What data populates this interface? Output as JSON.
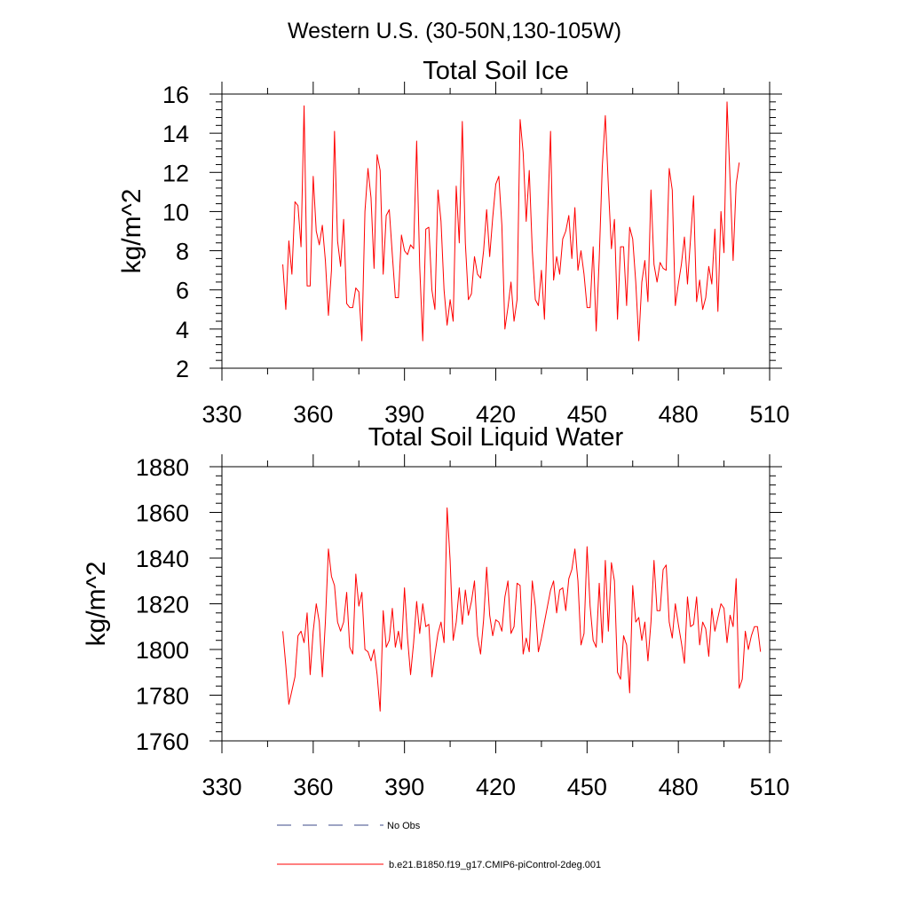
{
  "main_title": "Western U.S. (30-50N,130-105W)",
  "legend": [
    {
      "label": "No Obs",
      "color": "#3b4a8a",
      "dash": "dashed"
    },
    {
      "label": "b.e21.B1850.f19_g17.CMIP6-piControl-2deg.001",
      "color": "#ff0000",
      "dash": "solid"
    }
  ],
  "chart_data": [
    {
      "type": "line",
      "title": "Total Soil Ice",
      "xlabel": "",
      "ylabel": "kg/m^2",
      "xlim": [
        330,
        510
      ],
      "ylim": [
        2,
        16
      ],
      "xticks": [
        330,
        360,
        390,
        420,
        450,
        480,
        510
      ],
      "yticks": [
        2,
        4,
        6,
        8,
        10,
        12,
        14,
        16
      ],
      "series": [
        {
          "name": "b.e21.B1850.f19_g17.CMIP6-piControl-2deg.001",
          "color": "#ff0000",
          "x_start": 350,
          "x_step": 1,
          "values": [
            7.3,
            5.0,
            8.5,
            6.8,
            10.5,
            10.3,
            8.2,
            15.4,
            6.2,
            6.2,
            11.8,
            9.0,
            8.3,
            9.3,
            7.5,
            4.7,
            7.0,
            14.1,
            8.5,
            7.2,
            9.6,
            5.3,
            5.1,
            5.1,
            6.1,
            5.9,
            3.4,
            10.0,
            12.2,
            10.7,
            7.1,
            12.9,
            12.1,
            6.8,
            9.8,
            10.1,
            7.8,
            5.6,
            5.6,
            8.8,
            8.0,
            7.8,
            8.3,
            8.1,
            13.6,
            7.2,
            3.4,
            9.1,
            9.2,
            6.0,
            5.0,
            11.1,
            9.5,
            6.0,
            4.2,
            5.5,
            4.4,
            11.3,
            8.4,
            14.6,
            8.4,
            5.5,
            5.8,
            7.7,
            6.8,
            6.6,
            8.0,
            10.1,
            7.7,
            9.7,
            11.4,
            11.8,
            9.3,
            4.0,
            5.1,
            6.4,
            4.4,
            5.5,
            14.7,
            13.0,
            9.5,
            12.1,
            8.0,
            5.5,
            5.2,
            7.0,
            4.5,
            9.5,
            14.1,
            6.5,
            7.7,
            6.8,
            8.6,
            9.0,
            9.8,
            7.6,
            10.2,
            7.0,
            8.0,
            6.8,
            5.1,
            5.1,
            8.2,
            3.9,
            7.6,
            12.3,
            14.9,
            11.3,
            8.1,
            9.6,
            4.5,
            8.2,
            8.2,
            5.2,
            9.2,
            8.6,
            6.4,
            3.4,
            6.4,
            7.5,
            5.4,
            11.1,
            7.3,
            6.4,
            7.4,
            7.1,
            7.0,
            12.2,
            11.1,
            5.2,
            6.3,
            7.3,
            8.7,
            6.3,
            8.6,
            10.8,
            5.4,
            6.5,
            5.0,
            5.6,
            7.2,
            6.3,
            9.1,
            4.9,
            10.0,
            7.9,
            15.6,
            11.6,
            7.5,
            11.4,
            12.5
          ]
        }
      ]
    },
    {
      "type": "line",
      "title": "Total Soil Liquid Water",
      "xlabel": "",
      "ylabel": "kg/m^2",
      "xlim": [
        330,
        510
      ],
      "ylim": [
        1760,
        1880
      ],
      "xticks": [
        330,
        360,
        390,
        420,
        450,
        480,
        510
      ],
      "yticks": [
        1760,
        1780,
        1800,
        1820,
        1840,
        1860,
        1880
      ],
      "series": [
        {
          "name": "b.e21.B1850.f19_g17.CMIP6-piControl-2deg.001",
          "color": "#ff0000",
          "x_start": 350,
          "x_step": 1,
          "values": [
            1808,
            1793,
            1776,
            1782,
            1788,
            1806,
            1808,
            1803,
            1816,
            1789,
            1808,
            1820,
            1812,
            1788,
            1812,
            1844,
            1832,
            1828,
            1812,
            1808,
            1812,
            1825,
            1801,
            1798,
            1833,
            1819,
            1825,
            1800,
            1799,
            1795,
            1800,
            1789,
            1773,
            1817,
            1801,
            1804,
            1818,
            1801,
            1808,
            1800,
            1827,
            1805,
            1789,
            1803,
            1821,
            1807,
            1820,
            1810,
            1811,
            1788,
            1798,
            1807,
            1812,
            1803,
            1862,
            1839,
            1804,
            1812,
            1827,
            1811,
            1826,
            1815,
            1821,
            1830,
            1806,
            1798,
            1813,
            1836,
            1815,
            1806,
            1813,
            1812,
            1808,
            1823,
            1830,
            1807,
            1810,
            1829,
            1828,
            1798,
            1805,
            1799,
            1830,
            1819,
            1799,
            1805,
            1812,
            1819,
            1826,
            1830,
            1816,
            1826,
            1827,
            1817,
            1831,
            1835,
            1844,
            1830,
            1802,
            1807,
            1845,
            1819,
            1804,
            1801,
            1829,
            1803,
            1839,
            1808,
            1838,
            1830,
            1790,
            1787,
            1806,
            1802,
            1781,
            1828,
            1812,
            1814,
            1804,
            1812,
            1795,
            1812,
            1839,
            1817,
            1817,
            1835,
            1837,
            1812,
            1805,
            1820,
            1811,
            1803,
            1794,
            1823,
            1810,
            1811,
            1823,
            1802,
            1812,
            1809,
            1797,
            1818,
            1808,
            1814,
            1820,
            1818,
            1803,
            1815,
            1810,
            1831,
            1783,
            1787,
            1808,
            1800,
            1806,
            1810,
            1810,
            1799
          ]
        }
      ]
    }
  ]
}
